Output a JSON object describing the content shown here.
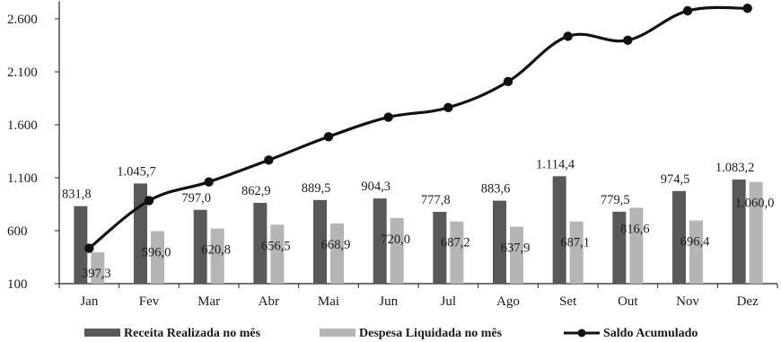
{
  "chart_data": {
    "type": "bar",
    "categories": [
      "Jan",
      "Fev",
      "Mar",
      "Abr",
      "Mai",
      "Jun",
      "Jul",
      "Ago",
      "Set",
      "Out",
      "Nov",
      "Dez"
    ],
    "ylim": [
      100,
      2700
    ],
    "yticks": [
      100,
      600,
      1100,
      1600,
      2100,
      2600
    ],
    "ytick_labels": [
      "100",
      "600",
      "1.100",
      "1.600",
      "2.100",
      "2.600"
    ],
    "grid": false,
    "legend_position": "bottom",
    "series": [
      {
        "name": "Receita Realizada no mês",
        "kind": "bar",
        "color": "#595959",
        "values": [
          831.8,
          1045.7,
          797.0,
          862.9,
          889.5,
          904.3,
          777.8,
          883.6,
          1114.4,
          779.5,
          974.5,
          1083.2
        ],
        "labels": [
          "831,8",
          "1.045,7",
          "797,0",
          "862,9",
          "889,5",
          "904,3",
          "777,8",
          "883,6",
          "1.114,4",
          "779,5",
          "974,5",
          "1.083,2"
        ]
      },
      {
        "name": "Despesa Liquidada no mês",
        "kind": "bar",
        "color": "#b5b5b5",
        "values": [
          397.3,
          596.0,
          620.8,
          656.5,
          668.9,
          720.0,
          687.2,
          637.9,
          687.1,
          816.6,
          696.4,
          1060.0
        ],
        "labels": [
          "397,3",
          "596,0",
          "620,8",
          "656,5",
          "668,9",
          "720,0",
          "687,2",
          "637,9",
          "687,1",
          "816,6",
          "696,4",
          "1.060,0"
        ]
      },
      {
        "name": "Saldo Acumulado",
        "kind": "line",
        "color": "#111111",
        "values": [
          434.5,
          884.2,
          1060.4,
          1266.8,
          1487.4,
          1671.7,
          1762.3,
          2008.0,
          2435.3,
          2398.2,
          2676.3,
          2699.5
        ]
      }
    ]
  }
}
